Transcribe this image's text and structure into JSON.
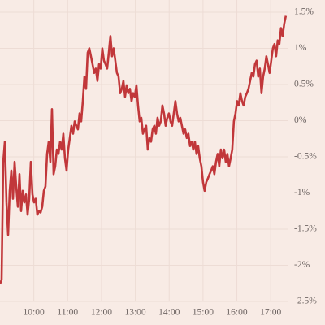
{
  "chart_data": {
    "type": "line",
    "color": "#c1373a",
    "grid": true,
    "xlim": [
      9,
      17.5
    ],
    "xticks": [
      {
        "value": 10,
        "label": "10:00"
      },
      {
        "value": 11,
        "label": "11:00"
      },
      {
        "value": 12,
        "label": "12:00"
      },
      {
        "value": 13,
        "label": "13:00"
      },
      {
        "value": 14,
        "label": "14:00"
      },
      {
        "value": 15,
        "label": "15:00"
      },
      {
        "value": 16,
        "label": "16:00"
      },
      {
        "value": 17,
        "label": "17:00"
      }
    ],
    "ylim": [
      -2.5,
      1.5
    ],
    "yticks": [
      {
        "value": 1.5,
        "label": "1.5%"
      },
      {
        "value": 1,
        "label": "1%"
      },
      {
        "value": 0.5,
        "label": "0.5%"
      },
      {
        "value": 0,
        "label": "0%"
      },
      {
        "value": -0.5,
        "label": "-0.5%"
      },
      {
        "value": -1,
        "label": "-1%"
      },
      {
        "value": -1.5,
        "label": "-1.5%"
      },
      {
        "value": -2,
        "label": "-2%"
      },
      {
        "value": -2.5,
        "label": "-2.5%"
      }
    ],
    "x": [
      9,
      9.048,
      9.096,
      9.144,
      9.192,
      9.24,
      9.288,
      9.336,
      9.384,
      9.432,
      9.48,
      9.528,
      9.576,
      9.624,
      9.672,
      9.72,
      9.768,
      9.816,
      9.864,
      9.912,
      9.96,
      10.008,
      10.056,
      10.104,
      10.152,
      10.2,
      10.248,
      10.296,
      10.344,
      10.392,
      10.44,
      10.488,
      10.536,
      10.584,
      10.632,
      10.68,
      10.728,
      10.776,
      10.824,
      10.872,
      10.92,
      10.968,
      11.016,
      11.064,
      11.112,
      11.16,
      11.208,
      11.256,
      11.304,
      11.352,
      11.4,
      11.448,
      11.496,
      11.544,
      11.592,
      11.64,
      11.688,
      11.736,
      11.784,
      11.832,
      11.88,
      11.928,
      11.976,
      12.024,
      12.072,
      12.12,
      12.168,
      12.216,
      12.264,
      12.312,
      12.36,
      12.408,
      12.456,
      12.504,
      12.552,
      12.6,
      12.648,
      12.696,
      12.744,
      12.792,
      12.84,
      12.888,
      12.936,
      12.984,
      13.032,
      13.08,
      13.128,
      13.176,
      13.224,
      13.272,
      13.32,
      13.368,
      13.416,
      13.464,
      13.512,
      13.56,
      13.608,
      13.656,
      13.704,
      13.752,
      13.8,
      13.848,
      13.896,
      13.944,
      13.992,
      14.04,
      14.088,
      14.136,
      14.184,
      14.232,
      14.28,
      14.328,
      14.376,
      14.424,
      14.472,
      14.52,
      14.568,
      14.616,
      14.664,
      14.712,
      14.76,
      14.808,
      14.856,
      14.904,
      14.952,
      15,
      15.048,
      15.096,
      15.144,
      15.192,
      15.24,
      15.288,
      15.336,
      15.384,
      15.432,
      15.48,
      15.528,
      15.576,
      15.624,
      15.672,
      15.72,
      15.768,
      15.816,
      15.864,
      15.912,
      15.96,
      16.008,
      16.056,
      16.104,
      16.152,
      16.2,
      16.248,
      16.296,
      16.344,
      16.392,
      16.44,
      16.488,
      16.536,
      16.584,
      16.632,
      16.68,
      16.728,
      16.776,
      16.824,
      16.872,
      16.92,
      16.968,
      17.016,
      17.064,
      17.112,
      17.16,
      17.208,
      17.256,
      17.304,
      17.352,
      17.4,
      17.448
    ],
    "values": [
      -2.26,
      -2.2,
      -0.57,
      -0.29,
      -1.13,
      -1.58,
      -0.97,
      -0.69,
      -1.08,
      -0.57,
      -0.91,
      -1.19,
      -0.74,
      -1.25,
      -0.97,
      -1.13,
      -1.02,
      -1.3,
      -1.08,
      -0.57,
      -1.02,
      -1.13,
      -1.08,
      -1.3,
      -1.25,
      -1.27,
      -1.19,
      -0.97,
      -0.91,
      -0.46,
      -0.29,
      -0.57,
      0.16,
      -0.74,
      -0.63,
      -0.4,
      -0.46,
      -0.29,
      -0.4,
      -0.18,
      -0.52,
      -0.69,
      -0.4,
      -0.24,
      -0.07,
      -0.18,
      -0.01,
      -0.07,
      -0.12,
      0.1,
      -0.01,
      0.27,
      0.61,
      0.44,
      0.94,
      1.0,
      0.89,
      0.78,
      0.66,
      0.72,
      0.55,
      0.78,
      0.72,
      1.0,
      0.83,
      0.78,
      0.72,
      0.94,
      1.17,
      0.89,
      1.0,
      0.83,
      0.66,
      0.61,
      0.38,
      0.44,
      0.55,
      0.33,
      0.49,
      0.38,
      0.44,
      0.27,
      0.38,
      0.33,
      0.49,
      0.21,
      -0.01,
      0.04,
      -0.18,
      -0.12,
      -0.07,
      -0.4,
      -0.24,
      -0.29,
      -0.12,
      -0.07,
      -0.18,
      0.04,
      -0.07,
      -0.01,
      0.21,
      0.1,
      -0.07,
      0.04,
      0.1,
      -0.01,
      -0.07,
      0.1,
      0.27,
      0.1,
      -0.01,
      0.04,
      -0.07,
      -0.18,
      -0.12,
      -0.24,
      -0.18,
      -0.35,
      -0.29,
      -0.4,
      -0.29,
      -0.46,
      -0.35,
      -0.52,
      -0.63,
      -0.85,
      -0.97,
      -0.85,
      -0.8,
      -0.74,
      -0.69,
      -0.63,
      -0.74,
      -0.57,
      -0.46,
      -0.63,
      -0.4,
      -0.52,
      -0.4,
      -0.57,
      -0.46,
      -0.63,
      -0.52,
      -0.4,
      -0.01,
      0.1,
      0.27,
      0.21,
      0.38,
      0.27,
      0.21,
      0.33,
      0.38,
      0.44,
      0.55,
      0.66,
      0.61,
      0.78,
      0.83,
      0.61,
      0.72,
      0.38,
      0.61,
      0.72,
      0.89,
      0.78,
      0.66,
      0.83,
      1.0,
      1.06,
      0.89,
      1.11,
      1.06,
      1.28,
      1.17,
      1.34,
      1.45
    ]
  }
}
